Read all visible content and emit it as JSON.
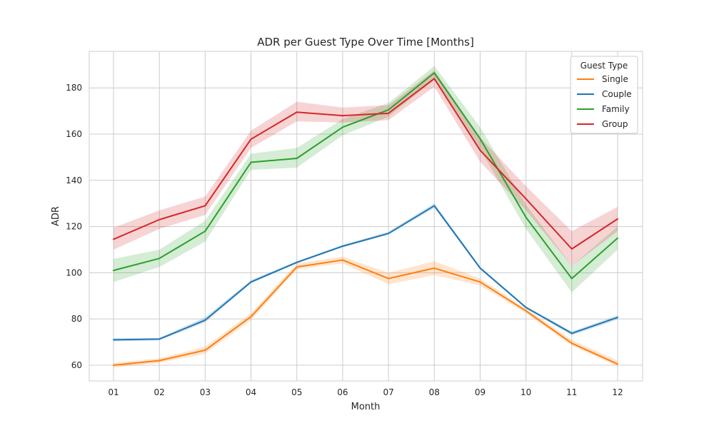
{
  "chart_data": {
    "type": "line",
    "title": "ADR per Guest Type Over Time [Months]",
    "xlabel": "Month",
    "ylabel": "ADR",
    "categories": [
      "01",
      "02",
      "03",
      "04",
      "05",
      "06",
      "07",
      "08",
      "09",
      "10",
      "11",
      "12"
    ],
    "ylim": [
      53.2,
      195.8
    ],
    "yticks": [
      60,
      80,
      100,
      120,
      140,
      160,
      180
    ],
    "grid": true,
    "legend": {
      "title": "Guest Type",
      "placement": "top-right"
    },
    "series": [
      {
        "name": "Single",
        "color": "#ff7f0e",
        "values": [
          60.0,
          62.0,
          66.5,
          81.0,
          102.5,
          105.5,
          97.5,
          102.0,
          96.0,
          83.5,
          69.5,
          60.5
        ],
        "ci_low": [
          59.0,
          61.0,
          65.0,
          79.5,
          101.5,
          104.0,
          95.0,
          99.0,
          94.5,
          82.5,
          68.5,
          59.5
        ],
        "ci_high": [
          61.0,
          63.0,
          68.0,
          82.5,
          104.0,
          107.0,
          100.0,
          105.0,
          97.5,
          84.5,
          71.0,
          62.0
        ]
      },
      {
        "name": "Couple",
        "color": "#1f77b4",
        "values": [
          71.0,
          71.3,
          79.5,
          96.0,
          104.5,
          111.5,
          117.0,
          129.0,
          102.0,
          85.0,
          73.8,
          80.7
        ],
        "ci_low": [
          70.3,
          70.8,
          78.5,
          95.5,
          104.0,
          111.0,
          116.5,
          128.0,
          101.5,
          84.5,
          73.0,
          79.7
        ],
        "ci_high": [
          71.7,
          71.8,
          80.8,
          96.8,
          105.0,
          112.0,
          117.8,
          130.0,
          102.7,
          85.5,
          74.6,
          81.6
        ]
      },
      {
        "name": "Family",
        "color": "#2ca02c",
        "values": [
          101.0,
          106.2,
          118.0,
          147.8,
          149.5,
          163.0,
          170.5,
          186.5,
          158.0,
          124.0,
          97.5,
          115.0
        ],
        "ci_low": [
          96.0,
          102.5,
          113.5,
          144.5,
          145.5,
          159.5,
          167.5,
          183.5,
          153.5,
          119.0,
          91.5,
          110.0
        ],
        "ci_high": [
          106.0,
          110.0,
          122.5,
          151.5,
          154.0,
          166.5,
          173.5,
          189.5,
          163.0,
          129.5,
          103.0,
          120.0
        ]
      },
      {
        "name": "Group",
        "color": "#d62728",
        "values": [
          114.5,
          123.0,
          129.0,
          157.8,
          169.5,
          168.0,
          169.0,
          184.0,
          153.0,
          132.0,
          110.3,
          123.3
        ],
        "ci_low": [
          110.0,
          119.0,
          125.0,
          154.0,
          165.5,
          165.0,
          166.0,
          180.5,
          148.0,
          127.0,
          103.0,
          118.0
        ],
        "ci_high": [
          119.5,
          127.0,
          133.0,
          161.5,
          174.0,
          171.5,
          172.5,
          187.5,
          158.5,
          137.5,
          118.0,
          128.5
        ]
      }
    ]
  }
}
